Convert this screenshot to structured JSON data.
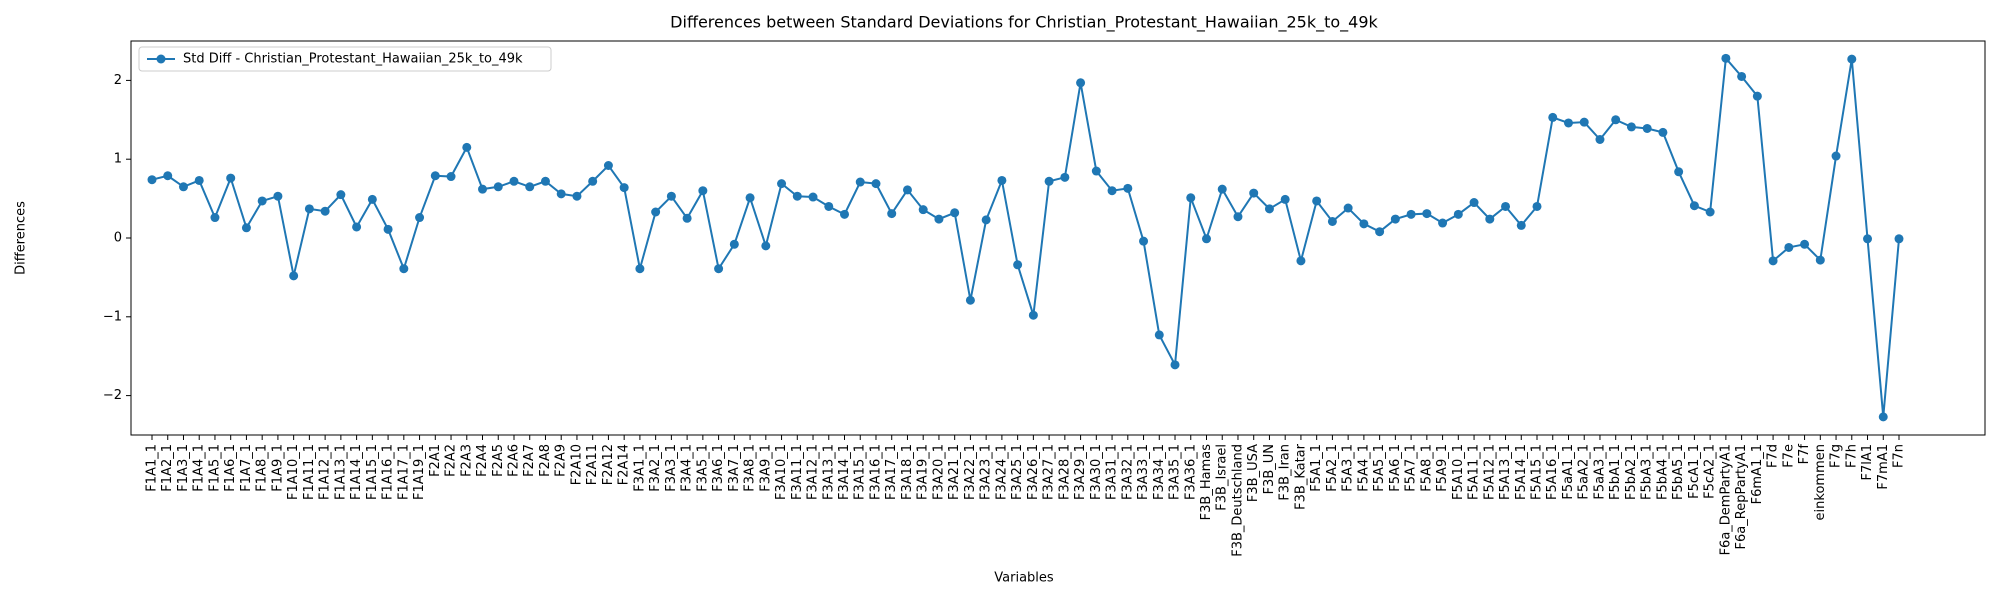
{
  "chart_data": {
    "type": "line",
    "title": "Differences between Standard Deviations for Christian_Protestant_Hawaiian_25k_to_49k",
    "x_label": "Variables",
    "y_label": "Differences",
    "legend": "upper left",
    "grid": false,
    "marker": "circle",
    "ylim": [
      -2.5,
      2.5
    ],
    "yticks": [
      {
        "value": -2,
        "label": "−2"
      },
      {
        "value": -1,
        "label": "−1"
      },
      0,
      1,
      2
    ],
    "categories": [
      "F1A1_1",
      "F1A2_1",
      "F1A3_1",
      "F1A4_1",
      "F1A5_1",
      "F1A6_1",
      "F1A7_1",
      "F1A8_1",
      "F1A9_1",
      "F1A10_1",
      "F1A11_1",
      "F1A12_1",
      "F1A13_1",
      "F1A14_1",
      "F1A15_1",
      "F1A16_1",
      "F1A17_1",
      "F1A19_1",
      "F2A1",
      "F2A2",
      "F2A3",
      "F2A4",
      "F2A5",
      "F2A6",
      "F2A7",
      "F2A8",
      "F2A9",
      "F2A10",
      "F2A11",
      "F2A12",
      "F2A14",
      "F3A1_1",
      "F3A2_1",
      "F3A3_1",
      "F3A4_1",
      "F3A5_1",
      "F3A6_1",
      "F3A7_1",
      "F3A8_1",
      "F3A9_1",
      "F3A10_1",
      "F3A11_1",
      "F3A12_1",
      "F3A13_1",
      "F3A14_1",
      "F3A15_1",
      "F3A16_1",
      "F3A17_1",
      "F3A18_1",
      "F3A19_1",
      "F3A20_1",
      "F3A21_1",
      "F3A22_1",
      "F3A23_1",
      "F3A24_1",
      "F3A25_1",
      "F3A26_1",
      "F3A27_1",
      "F3A28_1",
      "F3A29_1",
      "F3A30_1",
      "F3A31_1",
      "F3A32_1",
      "F3A33_1",
      "F3A34_1",
      "F3A35_1",
      "F3A36_1",
      "F3B_Hamas",
      "F3B_Israel",
      "F3B_Deutschland",
      "F3B_USA",
      "F3B_UN",
      "F3B_Iran",
      "F3B_Katar",
      "F5A1_1",
      "F5A2_1",
      "F5A3_1",
      "F5A4_1",
      "F5A5_1",
      "F5A6_1",
      "F5A7_1",
      "F5A8_1",
      "F5A9_1",
      "F5A10_1",
      "F5A11_1",
      "F5A12_1",
      "F5A13_1",
      "F5A14_1",
      "F5A15_1",
      "F5A16_1",
      "F5aA1_1",
      "F5aA2_1",
      "F5aA3_1",
      "F5bA1_1",
      "F5bA2_1",
      "F5bA3_1",
      "F5bA4_1",
      "F5bA5_1",
      "F5cA1_1",
      "F5cA2_1",
      "F6a_DemPartyA1",
      "F6a_RepPartyA1",
      "F6mA1_1",
      "F7d",
      "F7e",
      "F7f",
      "einkommen",
      "F7g",
      "F7h",
      "F7lA1",
      "F7mA1",
      "F7n"
    ],
    "series": [
      {
        "name": "Std Diff - Christian_Protestant_Hawaiian_25k_to_49k",
        "color": "#1f77b4",
        "values": [
          0.74,
          0.79,
          0.65,
          0.73,
          0.26,
          0.76,
          0.13,
          0.47,
          0.53,
          -0.48,
          0.37,
          0.34,
          0.55,
          0.14,
          0.49,
          0.11,
          -0.39,
          0.26,
          0.79,
          0.78,
          1.15,
          0.62,
          0.65,
          0.72,
          0.65,
          0.72,
          0.56,
          0.53,
          0.72,
          0.92,
          0.64,
          -0.39,
          0.33,
          0.53,
          0.25,
          0.6,
          -0.39,
          -0.08,
          0.51,
          -0.1,
          0.69,
          0.53,
          0.52,
          0.4,
          0.3,
          0.71,
          0.69,
          0.31,
          0.61,
          0.36,
          0.24,
          0.32,
          -0.79,
          0.23,
          0.73,
          -0.34,
          -0.98,
          0.72,
          0.77,
          1.97,
          0.85,
          0.6,
          0.63,
          -0.04,
          -1.23,
          -1.61,
          0.51,
          -0.01,
          0.62,
          0.27,
          0.57,
          0.37,
          0.49,
          -0.29,
          0.47,
          0.21,
          0.38,
          0.18,
          0.08,
          0.24,
          0.3,
          0.31,
          0.19,
          0.3,
          0.45,
          0.24,
          0.4,
          0.16,
          0.4,
          1.53,
          1.46,
          1.47,
          1.25,
          1.5,
          1.41,
          1.39,
          1.34,
          0.84,
          0.41,
          0.33,
          2.28,
          2.05,
          1.8,
          -0.29,
          -0.12,
          -0.08,
          -0.28,
          1.04,
          2.27,
          -0.01,
          -2.27,
          -0.01
        ]
      }
    ]
  }
}
